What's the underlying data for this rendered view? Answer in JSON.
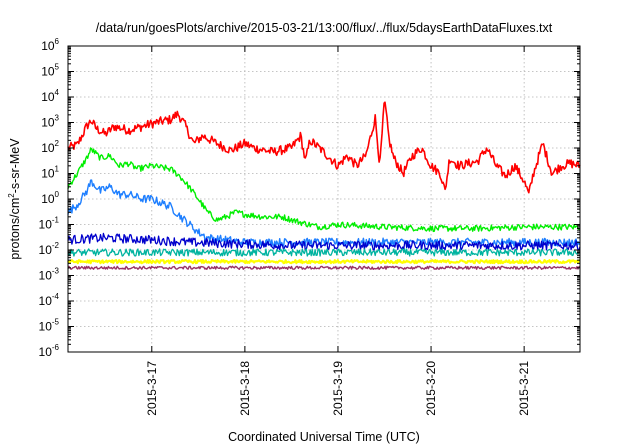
{
  "chart_data": {
    "type": "line",
    "title": "/data/run/goesPlots/archive/2015-03-21/13:00/flux/../flux/5daysEarthDataFluxes.txt",
    "xlabel": "Coordinated Universal Time (UTC)",
    "ylabel": {
      "base": "protons/cm",
      "sup": "2",
      "rest": "-s-sr-MeV"
    },
    "yscale": "log",
    "ylim": [
      1e-06,
      1000000.0
    ],
    "ytick_exponents": [
      -6,
      -5,
      -4,
      -3,
      -2,
      -1,
      0,
      1,
      2,
      3,
      4,
      5,
      6
    ],
    "x_categories_note": "day ticks",
    "xlim_days": [
      16.1,
      21.6
    ],
    "x_ticks": [
      {
        "label": "2015-3-17",
        "day": 17
      },
      {
        "label": "2015-3-18",
        "day": 18
      },
      {
        "label": "2015-3-19",
        "day": 19
      },
      {
        "label": "2015-3-20",
        "day": 20
      },
      {
        "label": "2015-3-21",
        "day": 21
      }
    ],
    "grid": true,
    "series": [
      {
        "color": "#ff0000",
        "width": 1.6,
        "points": [
          [
            16.1,
            100
          ],
          [
            16.2,
            130
          ],
          [
            16.3,
            700
          ],
          [
            16.35,
            1200
          ],
          [
            16.4,
            600
          ],
          [
            16.5,
            350
          ],
          [
            16.6,
            700
          ],
          [
            16.75,
            500
          ],
          [
            16.9,
            700
          ],
          [
            17.0,
            900
          ],
          [
            17.1,
            1100
          ],
          [
            17.2,
            1300
          ],
          [
            17.28,
            2200
          ],
          [
            17.35,
            900
          ],
          [
            17.45,
            150
          ],
          [
            17.55,
            300
          ],
          [
            17.7,
            150
          ],
          [
            17.85,
            80
          ],
          [
            18.0,
            150
          ],
          [
            18.1,
            100
          ],
          [
            18.3,
            70
          ],
          [
            18.5,
            100
          ],
          [
            18.6,
            300
          ],
          [
            18.65,
            30
          ],
          [
            18.7,
            200
          ],
          [
            18.8,
            100
          ],
          [
            19.0,
            20
          ],
          [
            19.1,
            50
          ],
          [
            19.2,
            20
          ],
          [
            19.3,
            50
          ],
          [
            19.4,
            1500
          ],
          [
            19.45,
            20
          ],
          [
            19.5,
            8000
          ],
          [
            19.55,
            200
          ],
          [
            19.6,
            40
          ],
          [
            19.7,
            10
          ],
          [
            19.8,
            50
          ],
          [
            19.9,
            100
          ],
          [
            20.0,
            20
          ],
          [
            20.1,
            10
          ],
          [
            20.15,
            2
          ],
          [
            20.2,
            40
          ],
          [
            20.3,
            20
          ],
          [
            20.5,
            30
          ],
          [
            20.6,
            100
          ],
          [
            20.7,
            20
          ],
          [
            20.8,
            8
          ],
          [
            20.9,
            20
          ],
          [
            21.0,
            5
          ],
          [
            21.05,
            1.5
          ],
          [
            21.1,
            10
          ],
          [
            21.2,
            150
          ],
          [
            21.3,
            10
          ],
          [
            21.4,
            20
          ],
          [
            21.5,
            25
          ],
          [
            21.6,
            20
          ]
        ]
      },
      {
        "color": "#00ee00",
        "width": 1.4,
        "points": [
          [
            16.1,
            3
          ],
          [
            16.2,
            10
          ],
          [
            16.3,
            40
          ],
          [
            16.35,
            90
          ],
          [
            16.45,
            40
          ],
          [
            16.55,
            50
          ],
          [
            16.65,
            20
          ],
          [
            16.75,
            25
          ],
          [
            16.85,
            15
          ],
          [
            17.0,
            20
          ],
          [
            17.2,
            15
          ],
          [
            17.3,
            8
          ],
          [
            17.4,
            3
          ],
          [
            17.5,
            1
          ],
          [
            17.6,
            0.3
          ],
          [
            17.7,
            0.15
          ],
          [
            17.8,
            0.2
          ],
          [
            17.9,
            0.3
          ],
          [
            18.0,
            0.25
          ],
          [
            18.2,
            0.2
          ],
          [
            18.4,
            0.2
          ],
          [
            18.6,
            0.12
          ],
          [
            18.8,
            0.08
          ],
          [
            19.0,
            0.1
          ],
          [
            19.5,
            0.08
          ],
          [
            20.0,
            0.07
          ],
          [
            20.5,
            0.07
          ],
          [
            21.0,
            0.08
          ],
          [
            21.6,
            0.08
          ]
        ]
      },
      {
        "color": "#1e7fff",
        "width": 1.4,
        "points": [
          [
            16.1,
            0.3
          ],
          [
            16.2,
            0.6
          ],
          [
            16.3,
            2
          ],
          [
            16.35,
            5
          ],
          [
            16.45,
            2
          ],
          [
            16.55,
            3
          ],
          [
            16.65,
            1.5
          ],
          [
            16.75,
            1.5
          ],
          [
            16.9,
            1
          ],
          [
            17.0,
            1
          ],
          [
            17.2,
            0.5
          ],
          [
            17.35,
            0.15
          ],
          [
            17.5,
            0.05
          ],
          [
            17.6,
            0.03
          ],
          [
            17.8,
            0.025
          ],
          [
            18.0,
            0.02
          ],
          [
            18.5,
            0.02
          ],
          [
            19.0,
            0.02
          ],
          [
            19.5,
            0.02
          ],
          [
            20.0,
            0.02
          ],
          [
            20.5,
            0.02
          ],
          [
            21.0,
            0.02
          ],
          [
            21.6,
            0.02
          ]
        ]
      },
      {
        "color": "#0000cc",
        "width": 1.3,
        "points": [
          [
            16.1,
            0.025
          ],
          [
            16.5,
            0.03
          ],
          [
            17.0,
            0.025
          ],
          [
            17.4,
            0.02
          ],
          [
            17.8,
            0.018
          ],
          [
            18.5,
            0.015
          ],
          [
            19.0,
            0.015
          ],
          [
            20.0,
            0.015
          ],
          [
            21.0,
            0.015
          ],
          [
            21.6,
            0.015
          ]
        ]
      },
      {
        "color": "#00b3a0",
        "width": 1.3,
        "points": [
          [
            16.1,
            0.008
          ],
          [
            17.0,
            0.008
          ],
          [
            18.0,
            0.008
          ],
          [
            19.0,
            0.008
          ],
          [
            20.0,
            0.008
          ],
          [
            21.0,
            0.008
          ],
          [
            21.6,
            0.008
          ]
        ]
      },
      {
        "color": "#ffff00",
        "width": 2.2,
        "points": [
          [
            16.1,
            0.0035
          ],
          [
            17.0,
            0.0035
          ],
          [
            18.0,
            0.0035
          ],
          [
            19.0,
            0.0035
          ],
          [
            20.0,
            0.0035
          ],
          [
            21.0,
            0.0035
          ],
          [
            21.6,
            0.0035
          ]
        ]
      },
      {
        "color": "#993366",
        "width": 1.4,
        "points": [
          [
            16.1,
            0.002
          ],
          [
            17.0,
            0.002
          ],
          [
            18.0,
            0.002
          ],
          [
            19.0,
            0.002
          ],
          [
            20.0,
            0.002
          ],
          [
            21.0,
            0.002
          ],
          [
            21.6,
            0.002
          ]
        ]
      }
    ]
  }
}
